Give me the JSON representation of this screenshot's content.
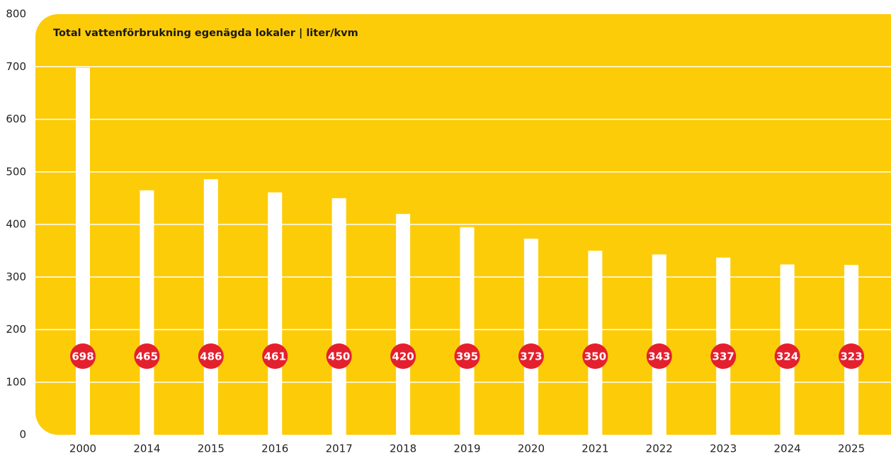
{
  "chart_data": {
    "type": "bar",
    "title": "Total vattenförbrukning egenägda lokaler  |  liter/kvm",
    "categories": [
      "2000",
      "2014",
      "2015",
      "2016",
      "2017",
      "2018",
      "2019",
      "2020",
      "2021",
      "2022",
      "2023",
      "2024",
      "2025"
    ],
    "values": [
      698,
      465,
      486,
      461,
      450,
      420,
      395,
      373,
      350,
      343,
      337,
      324,
      323
    ],
    "color": "#ffffff",
    "background": "#fdcc08",
    "label_color": "#e4202e",
    "ylim": [
      0,
      800
    ],
    "yticks": [
      0,
      100,
      200,
      300,
      400,
      500,
      600,
      700,
      800
    ],
    "grid": true
  }
}
